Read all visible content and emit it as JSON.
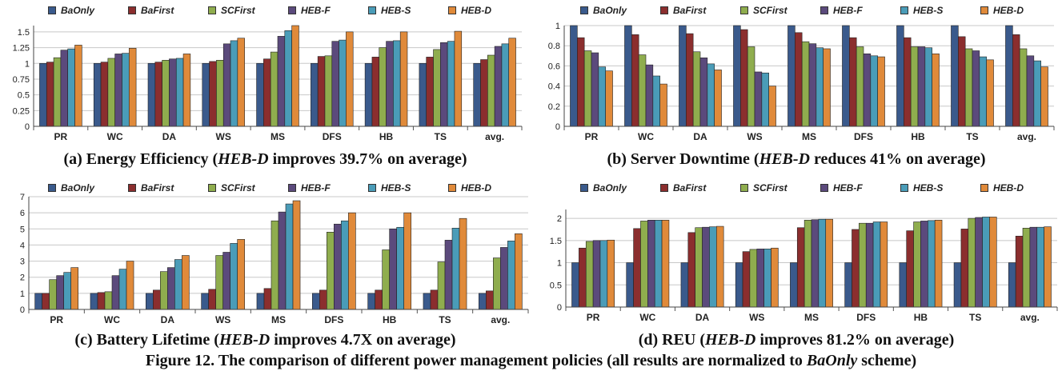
{
  "legend_labels": [
    "BaOnly",
    "BaFirst",
    "SCFirst",
    "HEB-F",
    "HEB-S",
    "HEB-D"
  ],
  "colors": {
    "BaOnly": "#3a5a8c",
    "BaFirst": "#8b2e2e",
    "SCFirst": "#8fad4e",
    "HEB-F": "#5b4a7c",
    "HEB-S": "#4a9cb8",
    "HEB-D": "#e08a3a"
  },
  "captions": {
    "a": {
      "prefix": "(a) Energy Efficiency (",
      "em": "HEB-D",
      "suffix": " improves 39.7% on average)"
    },
    "b": {
      "prefix": "(b) Server Downtime (",
      "em": "HEB-D",
      "suffix": " reduces 41% on average)"
    },
    "c": {
      "prefix": "(c) Battery Lifetime (",
      "em": "HEB-D",
      "suffix": " improves 4.7X on average)"
    },
    "d": {
      "prefix": "(d) REU (",
      "em": "HEB-D",
      "suffix": " improves 81.2% on average)"
    }
  },
  "figure_caption": {
    "prefix": "Figure 12. The comparison of different power management policies (all results are normalized to ",
    "em": "BaOnly",
    "suffix": " scheme)"
  },
  "chart_data": [
    {
      "type": "bar",
      "categories": [
        "PR",
        "WC",
        "DA",
        "WS",
        "MS",
        "DFS",
        "HB",
        "TS",
        "avg."
      ],
      "ylim": [
        0,
        1.6
      ],
      "yticks": [
        "0",
        "0.25",
        "0.5",
        "0.75",
        "1",
        "1.25",
        "1.5"
      ],
      "ytick_values": [
        0,
        0.25,
        0.5,
        0.75,
        1,
        1.25,
        1.5
      ],
      "grid": true,
      "series": [
        {
          "name": "BaOnly",
          "values": [
            1.0,
            1.0,
            1.0,
            1.0,
            1.0,
            1.0,
            1.0,
            1.0,
            1.0
          ]
        },
        {
          "name": "BaFirst",
          "values": [
            1.02,
            1.02,
            1.02,
            1.03,
            1.07,
            1.11,
            1.1,
            1.1,
            1.06
          ]
        },
        {
          "name": "SCFirst",
          "values": [
            1.09,
            1.08,
            1.05,
            1.05,
            1.18,
            1.12,
            1.25,
            1.22,
            1.13
          ]
        },
        {
          "name": "HEB-F",
          "values": [
            1.21,
            1.15,
            1.07,
            1.31,
            1.43,
            1.35,
            1.35,
            1.33,
            1.27
          ]
        },
        {
          "name": "HEB-S",
          "values": [
            1.23,
            1.16,
            1.08,
            1.36,
            1.52,
            1.37,
            1.36,
            1.35,
            1.31
          ]
        },
        {
          "name": "HEB-D",
          "values": [
            1.29,
            1.24,
            1.15,
            1.4,
            1.6,
            1.5,
            1.5,
            1.51,
            1.4
          ]
        }
      ]
    },
    {
      "type": "bar",
      "categories": [
        "PR",
        "WC",
        "DA",
        "WS",
        "MS",
        "DFS",
        "HB",
        "TS",
        "avg."
      ],
      "ylim": [
        0,
        1.0
      ],
      "yticks": [
        "0",
        "0.2",
        "0.4",
        "0.6",
        "0.8",
        "1"
      ],
      "ytick_values": [
        0,
        0.2,
        0.4,
        0.6,
        0.8,
        1
      ],
      "grid": true,
      "series": [
        {
          "name": "BaOnly",
          "values": [
            1.0,
            1.0,
            1.0,
            1.0,
            1.0,
            1.0,
            1.0,
            1.0,
            1.0
          ]
        },
        {
          "name": "BaFirst",
          "values": [
            0.88,
            0.91,
            0.92,
            0.96,
            0.93,
            0.88,
            0.88,
            0.89,
            0.91
          ]
        },
        {
          "name": "SCFirst",
          "values": [
            0.75,
            0.71,
            0.74,
            0.79,
            0.84,
            0.79,
            0.79,
            0.77,
            0.77
          ]
        },
        {
          "name": "HEB-F",
          "values": [
            0.73,
            0.61,
            0.68,
            0.54,
            0.82,
            0.72,
            0.79,
            0.75,
            0.7
          ]
        },
        {
          "name": "HEB-S",
          "values": [
            0.59,
            0.5,
            0.62,
            0.53,
            0.78,
            0.7,
            0.78,
            0.69,
            0.65
          ]
        },
        {
          "name": "HEB-D",
          "values": [
            0.55,
            0.42,
            0.56,
            0.4,
            0.77,
            0.69,
            0.72,
            0.66,
            0.59
          ]
        }
      ]
    },
    {
      "type": "bar",
      "categories": [
        "PR",
        "WC",
        "DA",
        "WS",
        "MS",
        "DFS",
        "HB",
        "TS",
        "avg."
      ],
      "ylim": [
        0,
        7
      ],
      "yticks": [
        "0",
        "1",
        "2",
        "3",
        "4",
        "5",
        "6",
        "7"
      ],
      "ytick_values": [
        0,
        1,
        2,
        3,
        4,
        5,
        6,
        7
      ],
      "grid": true,
      "series": [
        {
          "name": "BaOnly",
          "values": [
            1.0,
            1.0,
            1.0,
            1.0,
            1.0,
            1.0,
            1.0,
            1.0,
            1.0
          ]
        },
        {
          "name": "BaFirst",
          "values": [
            1.0,
            1.05,
            1.2,
            1.25,
            1.3,
            1.2,
            1.2,
            1.2,
            1.15
          ]
        },
        {
          "name": "SCFirst",
          "values": [
            1.85,
            1.1,
            2.35,
            3.35,
            5.5,
            4.8,
            3.7,
            2.95,
            3.2
          ]
        },
        {
          "name": "HEB-F",
          "values": [
            2.1,
            2.1,
            2.6,
            3.55,
            6.05,
            5.3,
            5.0,
            4.3,
            3.85
          ]
        },
        {
          "name": "HEB-S",
          "values": [
            2.3,
            2.5,
            3.1,
            4.1,
            6.55,
            5.5,
            5.1,
            5.05,
            4.25
          ]
        },
        {
          "name": "HEB-D",
          "values": [
            2.6,
            3.0,
            3.35,
            4.35,
            6.75,
            6.0,
            6.0,
            5.65,
            4.7
          ]
        }
      ]
    },
    {
      "type": "bar",
      "categories": [
        "PR",
        "WC",
        "DA",
        "WS",
        "MS",
        "DFS",
        "HB",
        "TS",
        "avg."
      ],
      "ylim": [
        0,
        2.2
      ],
      "yticks": [
        "0",
        "0.5",
        "1",
        "1.5",
        "2"
      ],
      "ytick_values": [
        0,
        0.5,
        1,
        1.5,
        2
      ],
      "grid": true,
      "series": [
        {
          "name": "BaOnly",
          "values": [
            1.0,
            1.0,
            1.0,
            1.0,
            1.0,
            1.0,
            1.0,
            1.0,
            1.0
          ]
        },
        {
          "name": "BaFirst",
          "values": [
            1.33,
            1.77,
            1.68,
            1.25,
            1.79,
            1.75,
            1.72,
            1.76,
            1.6
          ]
        },
        {
          "name": "SCFirst",
          "values": [
            1.48,
            1.94,
            1.79,
            1.3,
            1.96,
            1.89,
            1.92,
            2.0,
            1.78
          ]
        },
        {
          "name": "HEB-F",
          "values": [
            1.5,
            1.96,
            1.8,
            1.31,
            1.97,
            1.89,
            1.94,
            2.02,
            1.8
          ]
        },
        {
          "name": "HEB-S",
          "values": [
            1.5,
            1.96,
            1.81,
            1.31,
            1.98,
            1.92,
            1.95,
            2.03,
            1.8
          ]
        },
        {
          "name": "HEB-D",
          "values": [
            1.51,
            1.96,
            1.82,
            1.33,
            1.98,
            1.92,
            1.96,
            2.03,
            1.81
          ]
        }
      ]
    }
  ]
}
